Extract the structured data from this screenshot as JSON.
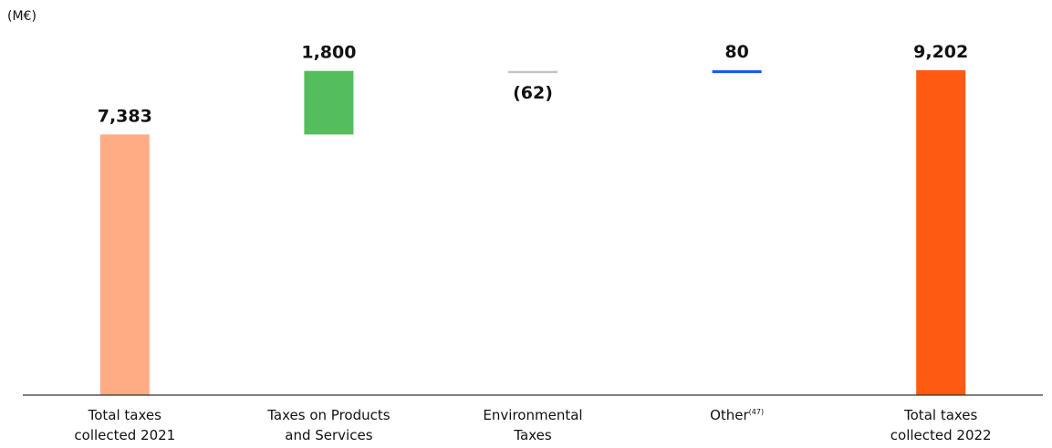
{
  "chart_data": {
    "type": "bar",
    "subtype": "waterfall",
    "unit_label": "(M€)",
    "categories": [
      {
        "lines": [
          "Total taxes",
          "collected 2021"
        ]
      },
      {
        "lines": [
          "Taxes on Products",
          "and Services"
        ]
      },
      {
        "lines": [
          "Environmental",
          "Taxes"
        ]
      },
      {
        "lines": [
          "Other"
        ],
        "superscript": "(47)"
      },
      {
        "lines": [
          "Total taxes",
          "collected 2022"
        ]
      }
    ],
    "bars": [
      {
        "kind": "total",
        "value": 7383,
        "label": "7,383",
        "color": "#FFAC84"
      },
      {
        "kind": "delta",
        "value": 1800,
        "label": "1,800",
        "color": "#54BE5E"
      },
      {
        "kind": "delta",
        "value": -62,
        "label": "(62)",
        "color": "#C4C4C4"
      },
      {
        "kind": "delta",
        "value": 80,
        "label": "80",
        "color": "#0F5FEA"
      },
      {
        "kind": "total",
        "value": 9202,
        "label": "9,202",
        "color": "#FF5A11"
      }
    ],
    "grid": false,
    "axis_color": "#333333"
  }
}
